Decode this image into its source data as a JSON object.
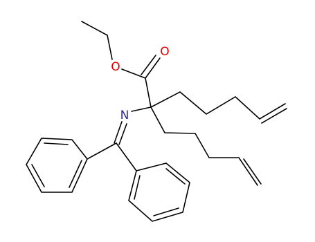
{
  "atoms": [
    {
      "label": "O"
    },
    {
      "label": "O"
    },
    {
      "label": "N"
    }
  ]
}
